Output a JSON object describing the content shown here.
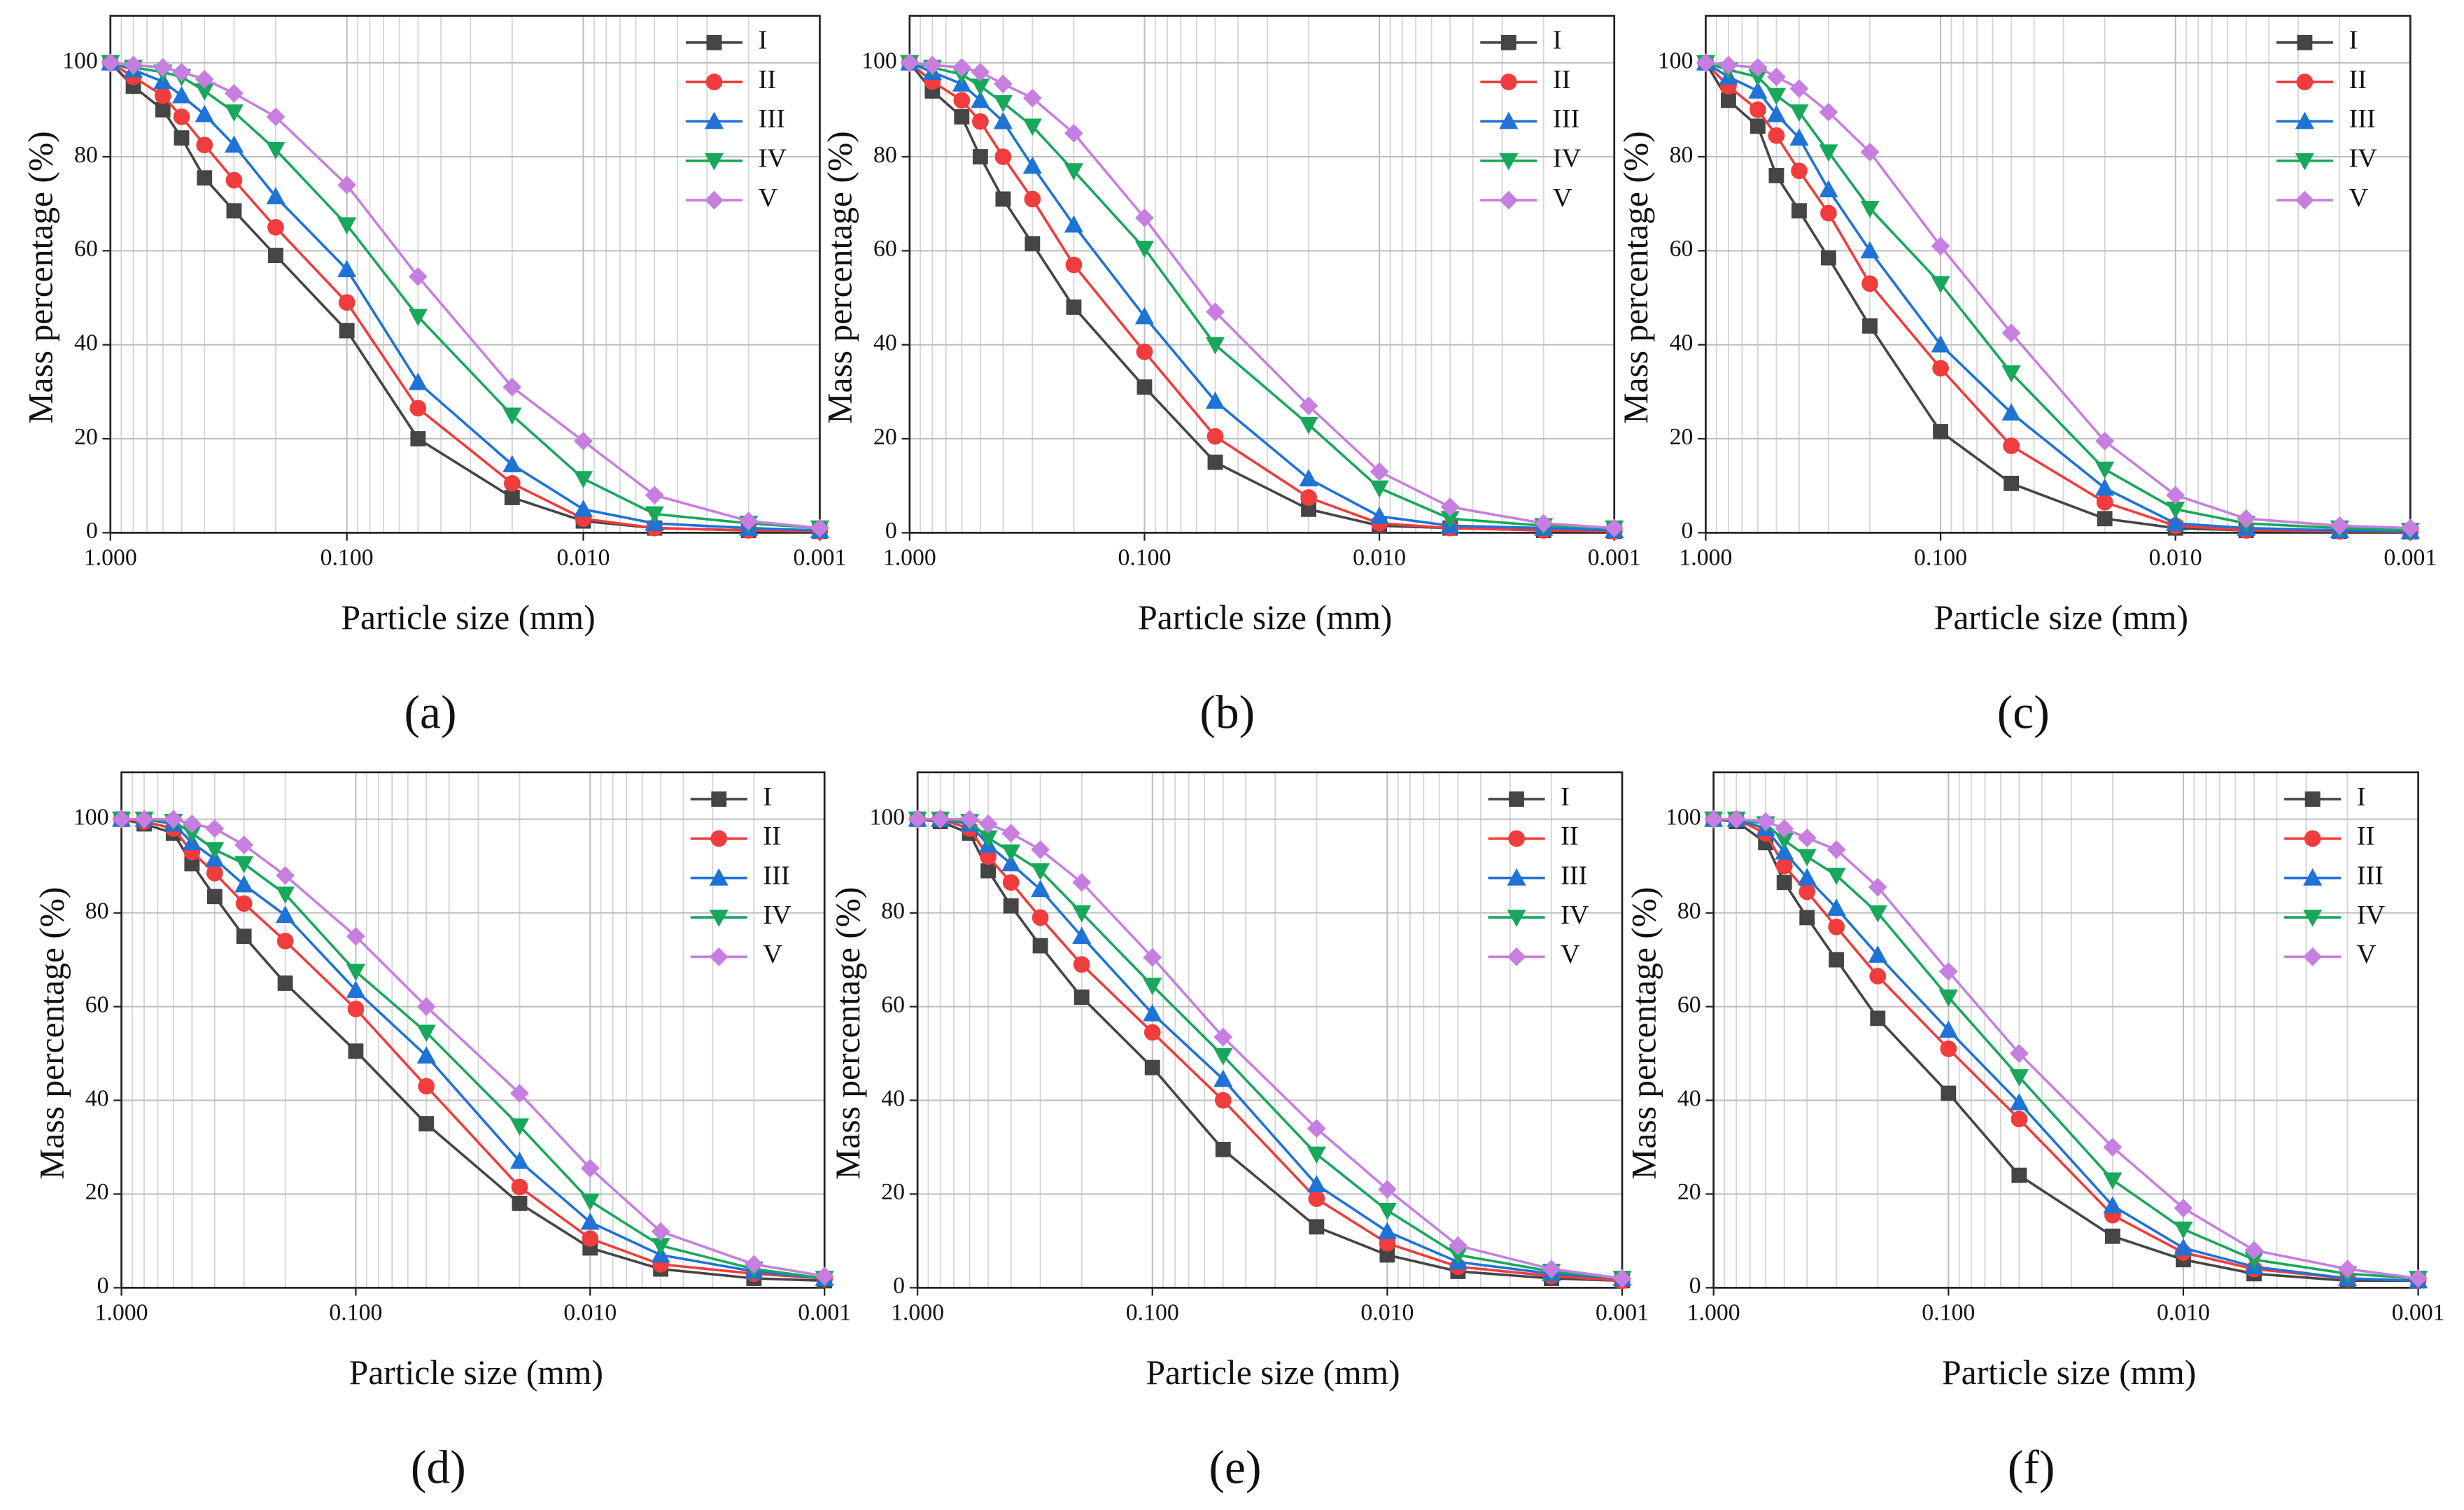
{
  "chart_data": [
    {
      "type": "line",
      "caption": "(a)",
      "x_label": "Particle size (mm)",
      "y_label": "Mass percentage (%)",
      "log_x": true,
      "grid": true,
      "x": [
        1,
        0.8,
        0.6,
        0.5,
        0.4,
        0.3,
        0.2,
        0.1,
        0.05,
        0.02,
        0.01,
        0.005,
        0.002,
        0.001
      ],
      "xlim": [
        1,
        0.001
      ],
      "xticks": [
        {
          "value": 1,
          "label": "1.000"
        },
        {
          "value": 0.1,
          "label": "0.100"
        },
        {
          "value": 0.01,
          "label": "0.010"
        },
        {
          "value": 0.001,
          "label": "0.001"
        }
      ],
      "ylim": [
        0,
        110
      ],
      "yticks": [
        0,
        20,
        40,
        60,
        80,
        100
      ],
      "series": [
        {
          "name": "I",
          "color": "#454545",
          "marker": "square",
          "values": [
            100,
            95,
            90,
            84,
            75.5,
            68.5,
            59,
            43,
            20,
            7.5,
            2.5,
            1,
            0.5,
            0.3
          ]
        },
        {
          "name": "II",
          "color": "#f03c3c",
          "marker": "circle",
          "values": [
            100,
            97,
            93,
            88.5,
            82.5,
            75,
            65,
            49,
            26.5,
            10.5,
            3,
            1,
            0.5,
            0.3
          ]
        },
        {
          "name": "III",
          "color": "#1f72d6",
          "marker": "triangle-up",
          "values": [
            100,
            98.5,
            96,
            93,
            89,
            82.5,
            71.5,
            56,
            32,
            14.5,
            5,
            2,
            1,
            0.5
          ]
        },
        {
          "name": "IV",
          "color": "#18a85c",
          "marker": "triangle-down",
          "values": [
            100,
            99,
            98,
            97,
            94,
            89.5,
            81.5,
            65.5,
            46,
            25,
            11.5,
            4,
            2,
            1
          ]
        },
        {
          "name": "V",
          "color": "#c67fe0",
          "marker": "diamond",
          "values": [
            100,
            99.5,
            99,
            98,
            96.5,
            93.5,
            88.5,
            74,
            54.5,
            31,
            19.5,
            8,
            2.5,
            1
          ]
        }
      ]
    },
    {
      "type": "line",
      "caption": "(b)",
      "x_label": "Particle size (mm)",
      "y_label": "Mass percentage (%)",
      "log_x": true,
      "grid": true,
      "x": [
        1,
        0.8,
        0.6,
        0.5,
        0.4,
        0.3,
        0.2,
        0.1,
        0.05,
        0.02,
        0.01,
        0.005,
        0.002,
        0.001
      ],
      "xlim": [
        1,
        0.001
      ],
      "xticks": [
        {
          "value": 1,
          "label": "1.000"
        },
        {
          "value": 0.1,
          "label": "0.100"
        },
        {
          "value": 0.01,
          "label": "0.010"
        },
        {
          "value": 0.001,
          "label": "0.001"
        }
      ],
      "ylim": [
        0,
        110
      ],
      "yticks": [
        0,
        20,
        40,
        60,
        80,
        100
      ],
      "series": [
        {
          "name": "I",
          "color": "#454545",
          "marker": "square",
          "values": [
            100,
            94,
            88.5,
            80,
            71,
            61.5,
            48,
            31,
            15,
            5,
            1.5,
            1,
            0.5,
            0.3
          ]
        },
        {
          "name": "II",
          "color": "#f03c3c",
          "marker": "circle",
          "values": [
            100,
            96,
            92,
            87.5,
            80,
            71,
            57,
            38.5,
            20.5,
            7.5,
            2,
            1,
            0.5,
            0.3
          ]
        },
        {
          "name": "III",
          "color": "#1f72d6",
          "marker": "triangle-up",
          "values": [
            100,
            98,
            95.5,
            92,
            87.5,
            78,
            65.5,
            46,
            28,
            11.5,
            3.5,
            1.5,
            1,
            0.5
          ]
        },
        {
          "name": "IV",
          "color": "#18a85c",
          "marker": "triangle-down",
          "values": [
            100,
            99,
            97.5,
            95,
            91.5,
            86.5,
            77,
            60.5,
            40,
            23,
            9.5,
            3,
            1.5,
            1
          ]
        },
        {
          "name": "V",
          "color": "#c67fe0",
          "marker": "diamond",
          "values": [
            100,
            99.5,
            99,
            98,
            95.5,
            92.5,
            85,
            67,
            47,
            27,
            13,
            5.5,
            2,
            1
          ]
        }
      ]
    },
    {
      "type": "line",
      "caption": "(c)",
      "x_label": "Particle size (mm)",
      "y_label": "Mass percentage (%)",
      "log_x": true,
      "grid": true,
      "x": [
        1,
        0.8,
        0.6,
        0.5,
        0.4,
        0.3,
        0.2,
        0.1,
        0.05,
        0.02,
        0.01,
        0.005,
        0.002,
        0.001
      ],
      "xlim": [
        1,
        0.001
      ],
      "xticks": [
        {
          "value": 1,
          "label": "1.000"
        },
        {
          "value": 0.1,
          "label": "0.100"
        },
        {
          "value": 0.01,
          "label": "0.010"
        },
        {
          "value": 0.001,
          "label": "0.001"
        }
      ],
      "ylim": [
        0,
        110
      ],
      "yticks": [
        0,
        20,
        40,
        60,
        80,
        100
      ],
      "series": [
        {
          "name": "I",
          "color": "#454545",
          "marker": "square",
          "values": [
            100,
            92,
            86.5,
            76,
            68.5,
            58.5,
            44,
            21.5,
            10.5,
            3,
            1,
            0.5,
            0.3,
            0.2
          ]
        },
        {
          "name": "II",
          "color": "#f03c3c",
          "marker": "circle",
          "values": [
            100,
            95,
            90,
            84.5,
            77,
            68,
            53,
            35,
            18.5,
            6.5,
            1.5,
            0.5,
            0.3,
            0.2
          ]
        },
        {
          "name": "III",
          "color": "#1f72d6",
          "marker": "triangle-up",
          "values": [
            100,
            97,
            94,
            89,
            84,
            73,
            60,
            40,
            25.5,
            9.5,
            2,
            1,
            0.5,
            0.3
          ]
        },
        {
          "name": "IV",
          "color": "#18a85c",
          "marker": "triangle-down",
          "values": [
            100,
            98.5,
            97,
            93,
            89.5,
            81,
            69,
            53,
            34,
            13.5,
            5,
            2,
            1,
            0.5
          ]
        },
        {
          "name": "V",
          "color": "#c67fe0",
          "marker": "diamond",
          "values": [
            100,
            99.5,
            99,
            97,
            94.5,
            89.5,
            81,
            61,
            42.5,
            19.5,
            8,
            3,
            1.5,
            1
          ]
        }
      ]
    },
    {
      "type": "line",
      "caption": "(d)",
      "x_label": "Particle size (mm)",
      "y_label": "Mass percentage (%)",
      "log_x": true,
      "grid": true,
      "x": [
        1,
        0.8,
        0.6,
        0.5,
        0.4,
        0.3,
        0.2,
        0.1,
        0.05,
        0.02,
        0.01,
        0.005,
        0.002,
        0.001
      ],
      "xlim": [
        1,
        0.001
      ],
      "xticks": [
        {
          "value": 1,
          "label": "1.000"
        },
        {
          "value": 0.1,
          "label": "0.100"
        },
        {
          "value": 0.01,
          "label": "0.010"
        },
        {
          "value": 0.001,
          "label": "0.001"
        }
      ],
      "ylim": [
        0,
        110
      ],
      "yticks": [
        0,
        20,
        40,
        60,
        80,
        100
      ],
      "series": [
        {
          "name": "I",
          "color": "#454545",
          "marker": "square",
          "values": [
            100,
            99,
            97,
            90.5,
            83.5,
            75,
            65,
            50.5,
            35,
            18,
            8.5,
            4,
            2,
            1.5
          ]
        },
        {
          "name": "II",
          "color": "#f03c3c",
          "marker": "circle",
          "values": [
            100,
            99.5,
            98,
            93,
            88.5,
            82,
            74,
            59.5,
            43,
            21.5,
            10.5,
            5,
            3,
            2
          ]
        },
        {
          "name": "III",
          "color": "#1f72d6",
          "marker": "triangle-up",
          "values": [
            100,
            100,
            99,
            95,
            91.5,
            86,
            79.5,
            63.5,
            49.5,
            27,
            14,
            7,
            3.5,
            2
          ]
        },
        {
          "name": "IV",
          "color": "#18a85c",
          "marker": "triangle-down",
          "values": [
            100,
            100,
            99.5,
            97,
            93.5,
            90.5,
            84,
            67.5,
            54.5,
            34.5,
            18.5,
            9,
            4,
            2
          ]
        },
        {
          "name": "V",
          "color": "#c67fe0",
          "marker": "diamond",
          "values": [
            100,
            100,
            100,
            99,
            98,
            94.5,
            88,
            75,
            60,
            41.5,
            25.5,
            12,
            5,
            2.5
          ]
        }
      ]
    },
    {
      "type": "line",
      "caption": "(e)",
      "x_label": "Particle size (mm)",
      "y_label": "Mass percentage (%)",
      "log_x": true,
      "grid": true,
      "x": [
        1,
        0.8,
        0.6,
        0.5,
        0.4,
        0.3,
        0.2,
        0.1,
        0.05,
        0.02,
        0.01,
        0.005,
        0.002,
        0.001
      ],
      "xlim": [
        1,
        0.001
      ],
      "xticks": [
        {
          "value": 1,
          "label": "1.000"
        },
        {
          "value": 0.1,
          "label": "0.100"
        },
        {
          "value": 0.01,
          "label": "0.010"
        },
        {
          "value": 0.001,
          "label": "0.001"
        }
      ],
      "ylim": [
        0,
        110
      ],
      "yticks": [
        0,
        20,
        40,
        60,
        80,
        100
      ],
      "series": [
        {
          "name": "I",
          "color": "#454545",
          "marker": "square",
          "values": [
            100,
            99.5,
            97,
            89,
            81.5,
            73,
            62,
            47,
            29.5,
            13,
            7,
            3.5,
            2,
            1.5
          ]
        },
        {
          "name": "II",
          "color": "#f03c3c",
          "marker": "circle",
          "values": [
            100,
            100,
            98,
            92,
            86.5,
            79,
            69,
            54.5,
            40,
            19,
            9.5,
            4.5,
            2.5,
            1.5
          ]
        },
        {
          "name": "III",
          "color": "#1f72d6",
          "marker": "triangle-up",
          "values": [
            100,
            100,
            99,
            94.5,
            90.5,
            85,
            75,
            58.5,
            44.5,
            22,
            12,
            5.5,
            3,
            2
          ]
        },
        {
          "name": "IV",
          "color": "#18a85c",
          "marker": "triangle-down",
          "values": [
            100,
            100,
            99.5,
            96,
            93,
            89,
            80,
            64.5,
            49.5,
            28.5,
            16.5,
            7,
            3.5,
            2
          ]
        },
        {
          "name": "V",
          "color": "#c67fe0",
          "marker": "diamond",
          "values": [
            100,
            100,
            100,
            99,
            97,
            93.5,
            86.5,
            70.5,
            53.5,
            34,
            21,
            9,
            4,
            2
          ]
        }
      ]
    },
    {
      "type": "line",
      "caption": "(f)",
      "x_label": "Particle size (mm)",
      "y_label": "Mass percentage (%)",
      "log_x": true,
      "grid": true,
      "x": [
        1,
        0.8,
        0.6,
        0.5,
        0.4,
        0.3,
        0.2,
        0.1,
        0.05,
        0.02,
        0.01,
        0.005,
        0.002,
        0.001
      ],
      "xlim": [
        1,
        0.001
      ],
      "xticks": [
        {
          "value": 1,
          "label": "1.000"
        },
        {
          "value": 0.1,
          "label": "0.100"
        },
        {
          "value": 0.01,
          "label": "0.010"
        },
        {
          "value": 0.001,
          "label": "0.001"
        }
      ],
      "ylim": [
        0,
        110
      ],
      "yticks": [
        0,
        20,
        40,
        60,
        80,
        100
      ],
      "series": [
        {
          "name": "I",
          "color": "#454545",
          "marker": "square",
          "values": [
            100,
            99.5,
            95,
            86.5,
            79,
            70,
            57.5,
            41.5,
            24,
            11,
            6,
            3,
            1.5,
            1.5
          ]
        },
        {
          "name": "II",
          "color": "#f03c3c",
          "marker": "circle",
          "values": [
            100,
            100,
            97,
            90,
            84.5,
            77,
            66.5,
            51,
            36,
            15.5,
            7.5,
            4,
            2,
            1.5
          ]
        },
        {
          "name": "III",
          "color": "#1f72d6",
          "marker": "triangle-up",
          "values": [
            100,
            100,
            98,
            93,
            87.5,
            81,
            71,
            55,
            39.5,
            17.5,
            8.5,
            4.5,
            2,
            1.5
          ]
        },
        {
          "name": "IV",
          "color": "#18a85c",
          "marker": "triangle-down",
          "values": [
            100,
            100,
            99,
            95.5,
            92,
            88,
            80,
            62,
            45,
            23,
            12.5,
            6,
            3,
            2
          ]
        },
        {
          "name": "V",
          "color": "#c67fe0",
          "marker": "diamond",
          "values": [
            100,
            100,
            99.5,
            98,
            96,
            93.5,
            85.5,
            67.5,
            50,
            30,
            17,
            8,
            4,
            2
          ]
        }
      ]
    }
  ]
}
